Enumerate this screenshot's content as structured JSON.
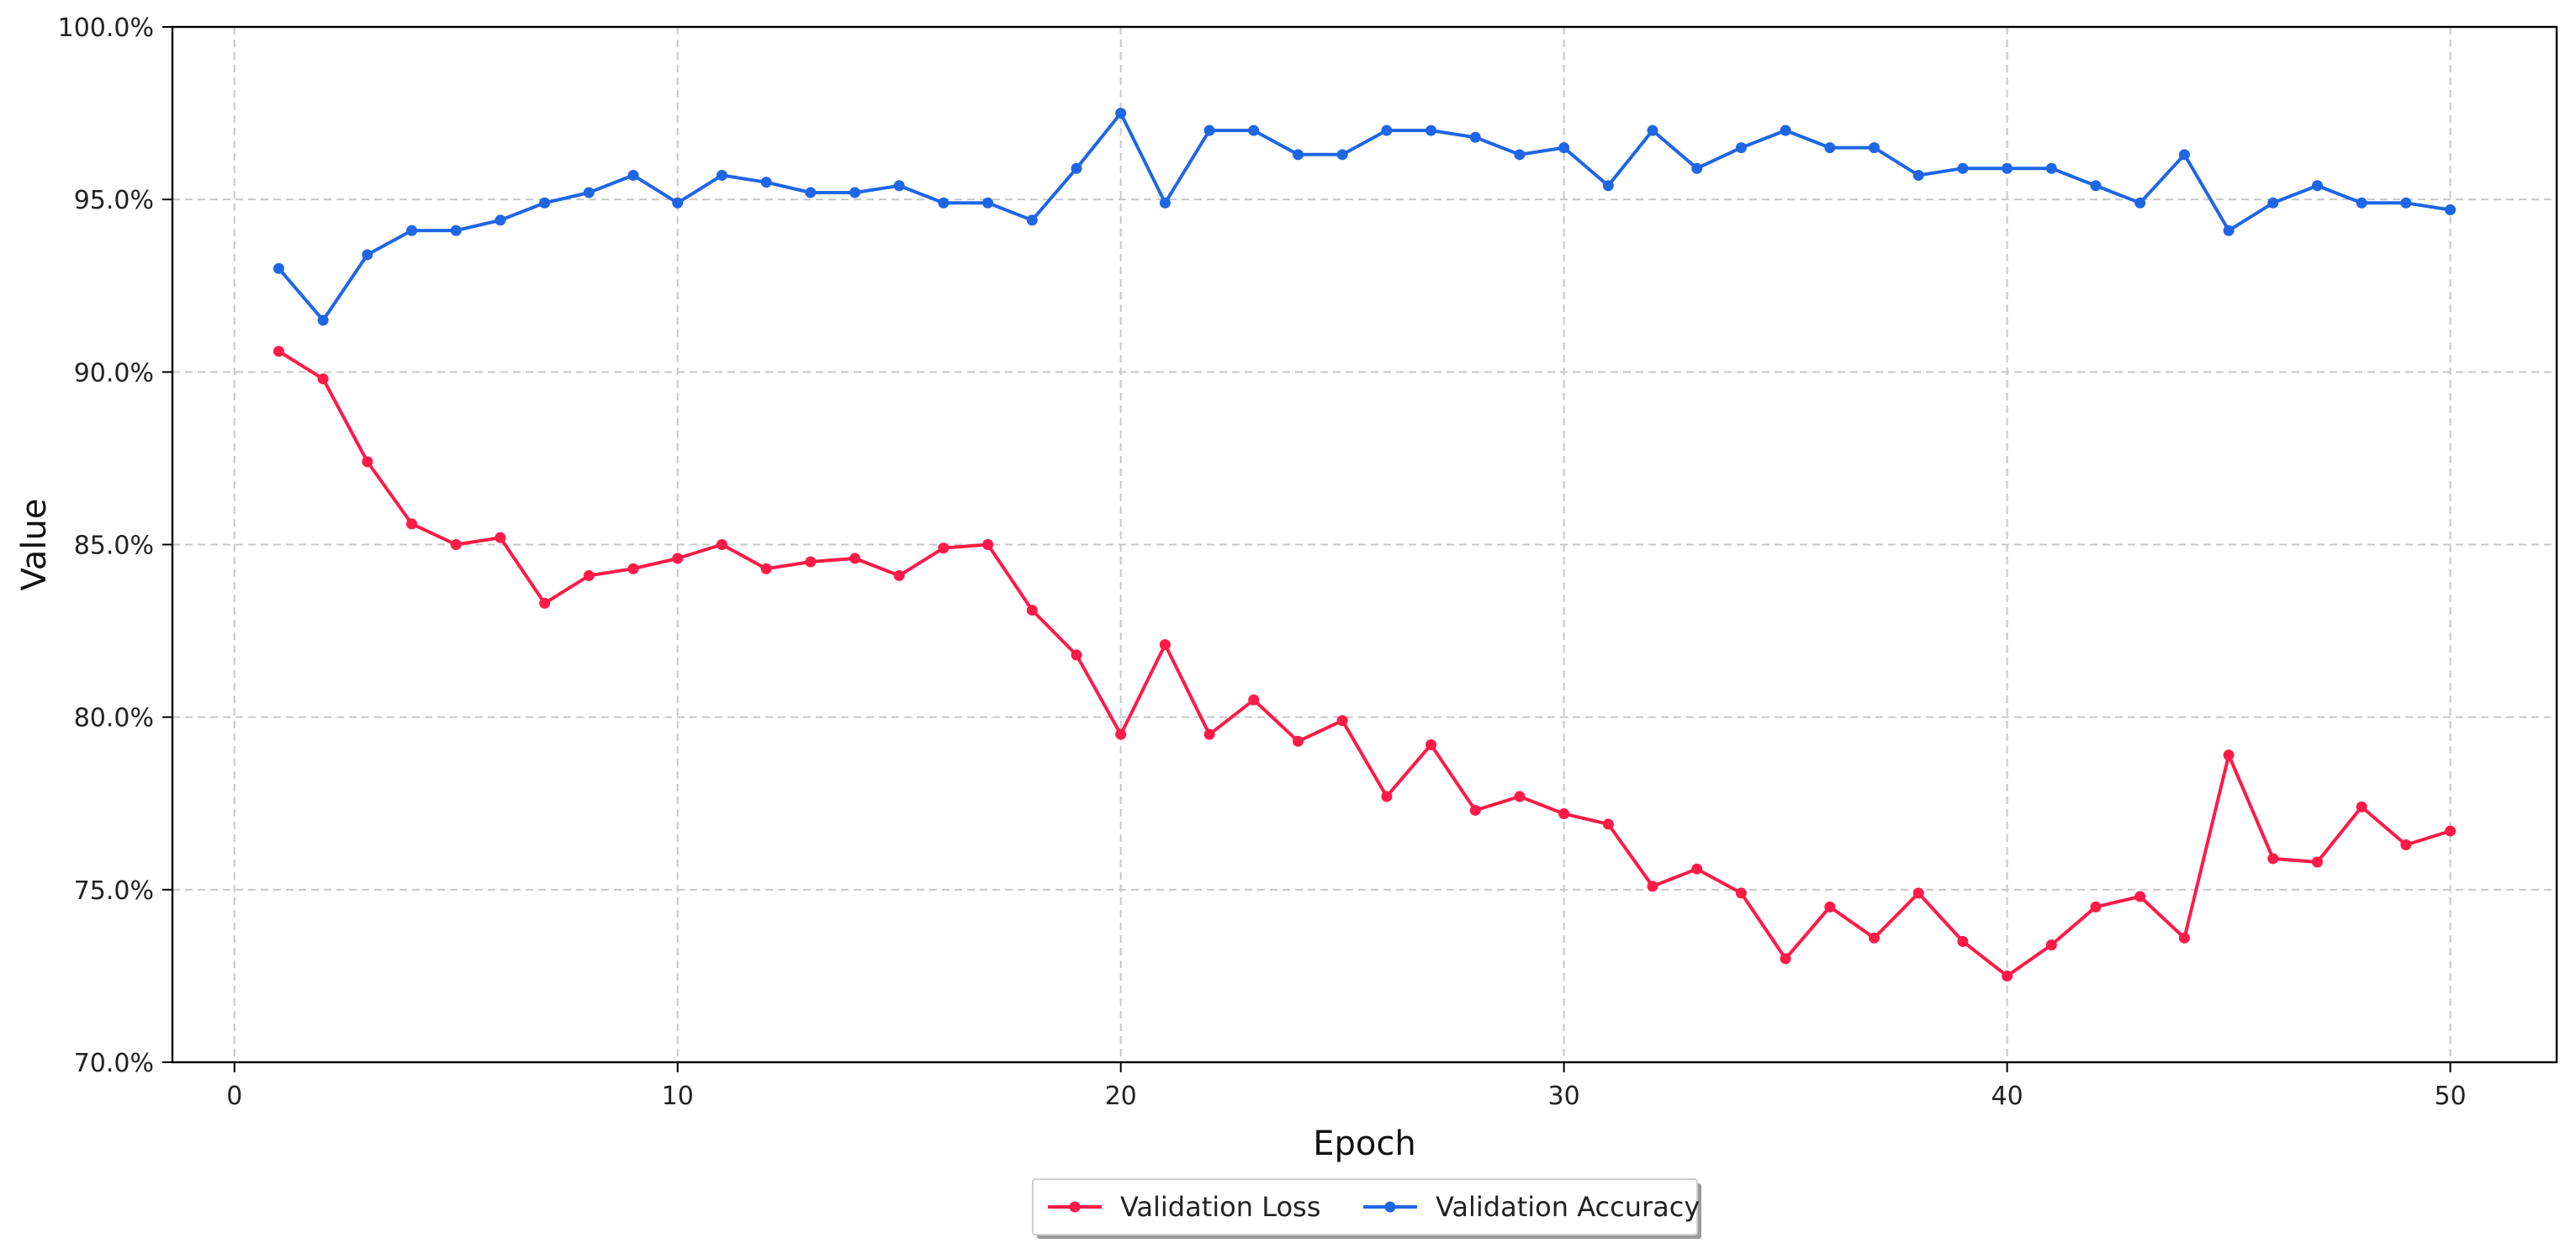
{
  "chart_data": {
    "type": "line",
    "title": "",
    "xlabel": "Epoch",
    "ylabel": "Value",
    "xlim": [
      -1.4,
      52.4
    ],
    "ylim": [
      70,
      100
    ],
    "xticks": [
      0,
      10,
      20,
      30,
      40,
      50
    ],
    "xtick_labels": [
      "0",
      "10",
      "20",
      "30",
      "40",
      "50"
    ],
    "yticks": [
      70,
      75,
      80,
      85,
      90,
      95,
      100
    ],
    "ytick_labels": [
      "70.0%",
      "75.0%",
      "80.0%",
      "85.0%",
      "90.0%",
      "95.0%",
      "100.0%"
    ],
    "grid": true,
    "legend_position": "bottom-center",
    "x": [
      1,
      2,
      3,
      4,
      5,
      6,
      7,
      8,
      9,
      10,
      11,
      12,
      13,
      14,
      15,
      16,
      17,
      18,
      19,
      20,
      21,
      22,
      23,
      24,
      25,
      26,
      27,
      28,
      29,
      30,
      31,
      32,
      33,
      34,
      35,
      36,
      37,
      38,
      39,
      40,
      41,
      42,
      43,
      44,
      45,
      46,
      47,
      48,
      49,
      50
    ],
    "series": [
      {
        "name": "Validation Loss",
        "color": "#ff1a47",
        "values": [
          90.6,
          89.8,
          87.4,
          85.6,
          85.0,
          85.2,
          83.3,
          84.1,
          84.3,
          84.6,
          85.0,
          84.3,
          84.5,
          84.6,
          84.1,
          84.9,
          85.0,
          83.1,
          81.8,
          79.5,
          82.1,
          79.5,
          80.5,
          79.3,
          79.9,
          77.7,
          79.2,
          77.3,
          77.7,
          77.2,
          76.9,
          75.1,
          75.6,
          74.9,
          73.0,
          74.5,
          73.6,
          74.9,
          73.5,
          72.5,
          73.4,
          74.5,
          74.8,
          73.6,
          78.9,
          75.9,
          75.8,
          77.4,
          76.3,
          76.7
        ]
      },
      {
        "name": "Validation Accuracy",
        "color": "#1f66e5",
        "values": [
          93.0,
          91.5,
          93.4,
          94.1,
          94.1,
          94.4,
          94.9,
          95.2,
          95.7,
          94.9,
          95.7,
          95.5,
          95.2,
          95.2,
          95.4,
          94.9,
          94.9,
          94.4,
          95.9,
          97.5,
          94.9,
          97.0,
          97.0,
          96.3,
          96.3,
          97.0,
          97.0,
          96.8,
          96.3,
          96.5,
          95.4,
          97.0,
          95.9,
          96.5,
          97.0,
          96.5,
          96.5,
          95.7,
          95.9,
          95.9,
          95.9,
          95.4,
          94.9,
          96.3,
          94.1,
          94.9,
          95.4,
          94.9,
          94.9,
          94.7
        ]
      }
    ]
  }
}
